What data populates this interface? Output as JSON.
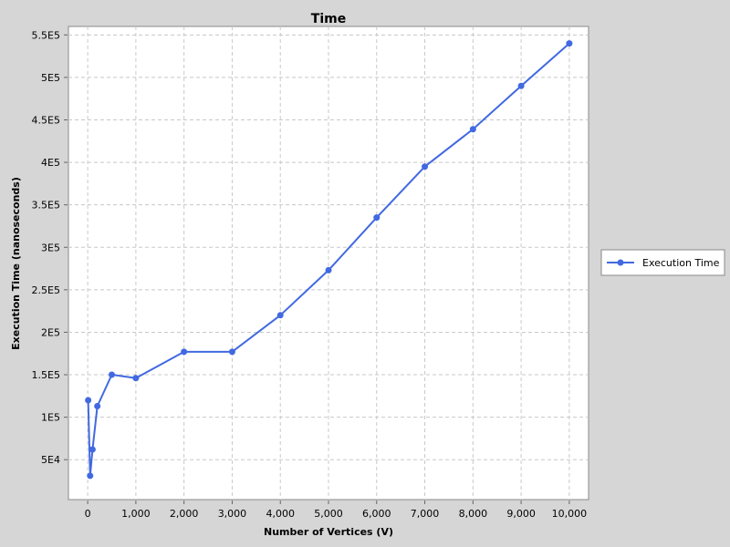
{
  "chart_data": {
    "type": "line",
    "title": "Time",
    "xlabel": "Number of Vertices (V)",
    "ylabel": "Execution Time (nanoseconds)",
    "xlim": [
      -400,
      10400
    ],
    "ylim": [
      3000,
      560000
    ],
    "x_ticks": [
      0,
      1000,
      2000,
      3000,
      4000,
      5000,
      6000,
      7000,
      8000,
      9000,
      10000
    ],
    "x_tick_labels": [
      "0",
      "1,000",
      "2,000",
      "3,000",
      "4,000",
      "5,000",
      "6,000",
      "7,000",
      "8,000",
      "9,000",
      "10,000"
    ],
    "y_ticks": [
      50000,
      100000,
      150000,
      200000,
      250000,
      300000,
      350000,
      400000,
      450000,
      500000,
      550000
    ],
    "y_tick_labels": [
      "5E4",
      "1E5",
      "1.5E5",
      "2E5",
      "2.5E5",
      "3E5",
      "3.5E5",
      "4E5",
      "4.5E5",
      "5E5",
      "5.5E5"
    ],
    "grid": true,
    "legend_position": "right",
    "series": [
      {
        "name": "Execution Time",
        "color": "#4169e1",
        "x": [
          10,
          50,
          100,
          200,
          500,
          1000,
          2000,
          3000,
          4000,
          5000,
          6000,
          7000,
          8000,
          9000,
          10000
        ],
        "y": [
          120000,
          31000,
          62000,
          113000,
          150000,
          146000,
          177000,
          177000,
          220000,
          273000,
          335000,
          395000,
          439000,
          490000,
          540000
        ]
      }
    ]
  }
}
